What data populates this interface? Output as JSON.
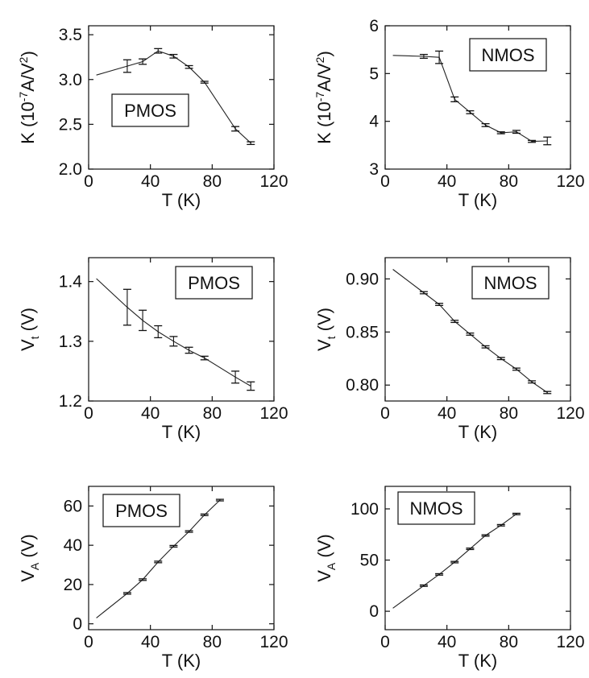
{
  "chart_data": [
    {
      "type": "line",
      "title": "",
      "legend": "PMOS",
      "xlabel": "T (K)",
      "ylabel_parts": {
        "base": "K (10",
        "sup1": "-7",
        "mid": "A/V",
        "sup2": "2",
        "end": ")"
      },
      "xlim": [
        0,
        120
      ],
      "ylim": [
        2.0,
        3.6
      ],
      "xticks": [
        "0",
        "40",
        "80",
        "120"
      ],
      "yticks": [
        "2.0",
        "2.5",
        "3.0",
        "3.5"
      ],
      "ytick_values": [
        2.0,
        2.5,
        3.0,
        3.5
      ],
      "x": [
        5,
        25,
        35,
        45,
        55,
        65,
        75,
        95,
        105
      ],
      "y": [
        3.05,
        3.15,
        3.2,
        3.32,
        3.26,
        3.14,
        2.97,
        2.45,
        2.29
      ],
      "err": [
        null,
        0.07,
        0.03,
        0.025,
        0.02,
        0.015,
        0.01,
        0.025,
        0.015
      ],
      "legend_position": "middle-left"
    },
    {
      "type": "line",
      "title": "",
      "legend": "NMOS",
      "xlabel": "T (K)",
      "ylabel_parts": {
        "base": "K (10",
        "sup1": "-7",
        "mid": "A/V",
        "sup2": "2",
        "end": ")"
      },
      "xlim": [
        0,
        120
      ],
      "ylim": [
        3,
        6
      ],
      "xticks": [
        "0",
        "40",
        "80",
        "120"
      ],
      "yticks": [
        "3",
        "4",
        "5",
        "6"
      ],
      "ytick_values": [
        3,
        4,
        5,
        6
      ],
      "x": [
        5,
        25,
        35,
        45,
        55,
        65,
        75,
        85,
        95,
        105
      ],
      "y": [
        5.38,
        5.36,
        5.34,
        4.46,
        4.19,
        3.92,
        3.76,
        3.78,
        3.58,
        3.59
      ],
      "err": [
        null,
        0.04,
        0.13,
        0.05,
        0.03,
        0.03,
        0.02,
        0.03,
        0.02,
        0.08
      ],
      "legend_position": "top-right"
    },
    {
      "type": "line",
      "title": "",
      "legend": "PMOS",
      "xlabel": "T (K)",
      "ylabel_parts": {
        "base": "V",
        "sub": "t",
        "end": " (V)"
      },
      "xlim": [
        0,
        120
      ],
      "ylim": [
        1.2,
        1.44
      ],
      "xticks": [
        "0",
        "40",
        "80",
        "120"
      ],
      "yticks": [
        "1.2",
        "1.3",
        "1.4"
      ],
      "ytick_values": [
        1.2,
        1.3,
        1.4
      ],
      "x": [
        5,
        25,
        35,
        45,
        55,
        65,
        75,
        95,
        105
      ],
      "y": [
        1.405,
        1.357,
        1.335,
        1.316,
        1.3,
        1.285,
        1.272,
        1.24,
        1.225
      ],
      "err": [
        null,
        0.03,
        0.017,
        0.01,
        0.008,
        0.005,
        0.003,
        0.01,
        0.007
      ],
      "legend_position": "top-right"
    },
    {
      "type": "line",
      "title": "",
      "legend": "NMOS",
      "xlabel": "T (K)",
      "ylabel_parts": {
        "base": "V",
        "sub": "t",
        "end": " (V)"
      },
      "xlim": [
        0,
        120
      ],
      "ylim": [
        0.785,
        0.92
      ],
      "xticks": [
        "0",
        "40",
        "80",
        "120"
      ],
      "yticks": [
        "0.80",
        "0.85",
        "0.90"
      ],
      "ytick_values": [
        0.8,
        0.85,
        0.9
      ],
      "x": [
        5,
        25,
        35,
        45,
        55,
        65,
        75,
        85,
        95,
        105
      ],
      "y": [
        0.909,
        0.887,
        0.876,
        0.86,
        0.848,
        0.836,
        0.825,
        0.815,
        0.803,
        0.793
      ],
      "err": [
        null,
        0.001,
        0.001,
        0.001,
        0.001,
        0.001,
        0.001,
        0.001,
        0.001,
        0.001
      ],
      "legend_position": "top-right"
    },
    {
      "type": "line",
      "title": "",
      "legend": "PMOS",
      "xlabel": "T (K)",
      "ylabel_parts": {
        "base": "V",
        "sub": "A",
        "end": " (V)"
      },
      "xlim": [
        0,
        120
      ],
      "ylim": [
        -3,
        70
      ],
      "xticks": [
        "0",
        "40",
        "80",
        "120"
      ],
      "yticks": [
        "0",
        "20",
        "40",
        "60"
      ],
      "ytick_values": [
        0,
        20,
        40,
        60
      ],
      "x": [
        5,
        25,
        35,
        45,
        55,
        65,
        75,
        85
      ],
      "y": [
        3,
        15.5,
        22.5,
        31.5,
        39.5,
        47,
        55.5,
        63
      ],
      "err": [
        null,
        0.4,
        0.4,
        0.4,
        0.4,
        0.4,
        0.4,
        0.4
      ],
      "legend_position": "top-left"
    },
    {
      "type": "line",
      "title": "",
      "legend": "NMOS",
      "xlabel": "T (K)",
      "ylabel_parts": {
        "base": "V",
        "sub": "A",
        "end": " (V)"
      },
      "xlim": [
        0,
        120
      ],
      "ylim": [
        -18,
        122
      ],
      "xticks": [
        "0",
        "40",
        "80",
        "120"
      ],
      "yticks": [
        "0",
        "50",
        "100"
      ],
      "ytick_values": [
        0,
        50,
        100
      ],
      "x": [
        5,
        25,
        35,
        45,
        55,
        65,
        75,
        85
      ],
      "y": [
        3,
        25,
        36,
        48,
        61,
        74,
        84,
        95
      ],
      "err": [
        null,
        0.7,
        0.7,
        0.7,
        0.7,
        0.7,
        0.7,
        0.7
      ],
      "legend_position": "top-left"
    }
  ]
}
